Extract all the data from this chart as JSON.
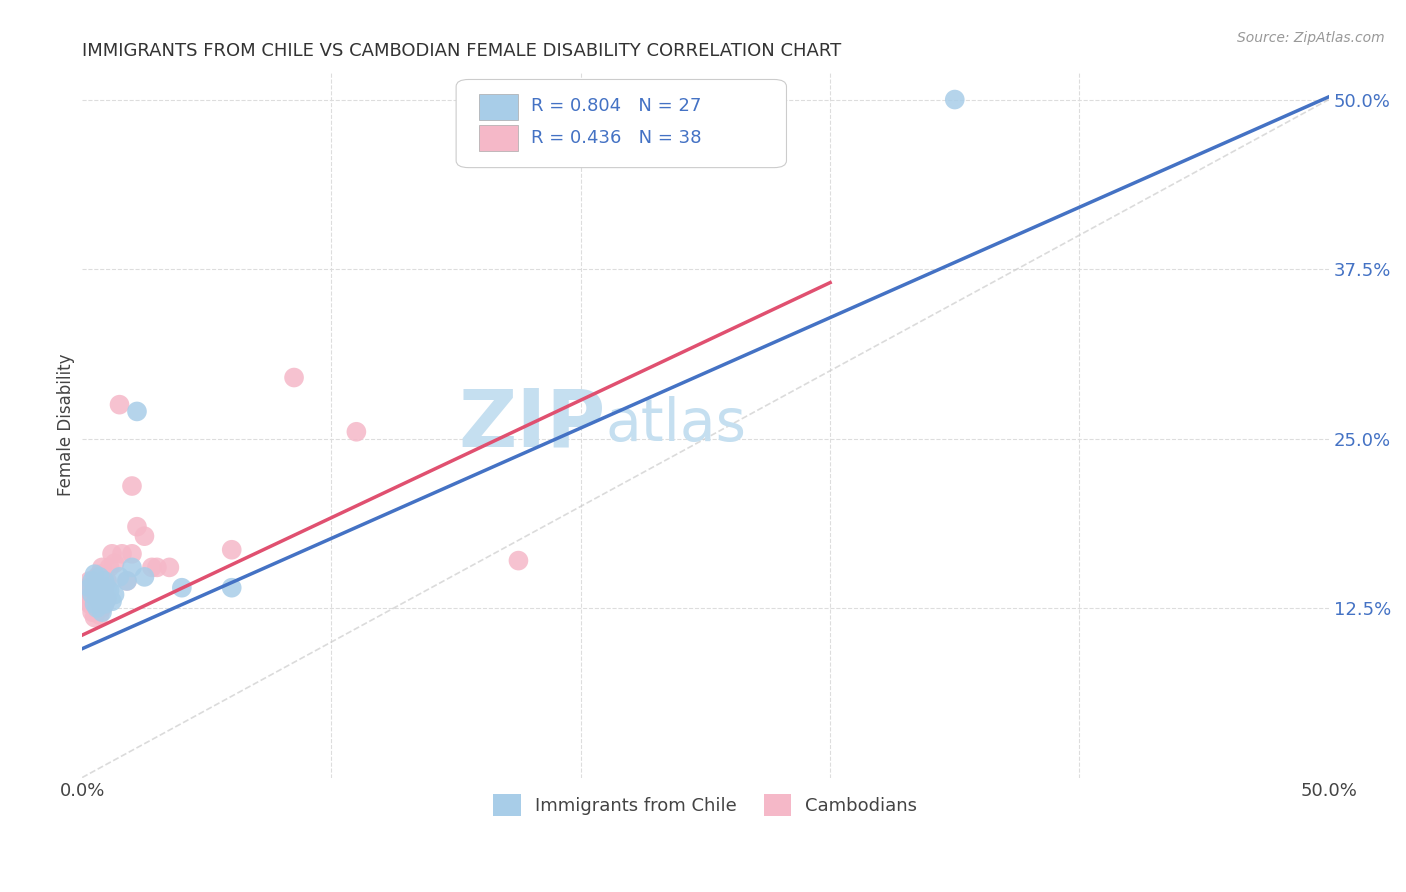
{
  "title": "IMMIGRANTS FROM CHILE VS CAMBODIAN FEMALE DISABILITY CORRELATION CHART",
  "source": "Source: ZipAtlas.com",
  "ylabel": "Female Disability",
  "xlim": [
    0.0,
    0.5
  ],
  "ylim": [
    0.0,
    0.52
  ],
  "xtick_positions": [
    0.0,
    0.1,
    0.2,
    0.3,
    0.4,
    0.5
  ],
  "xticklabels": [
    "0.0%",
    "",
    "",
    "",
    "",
    "50.0%"
  ],
  "ytick_positions": [
    0.125,
    0.25,
    0.375,
    0.5
  ],
  "ytick_labels": [
    "12.5%",
    "25.0%",
    "37.5%",
    "50.0%"
  ],
  "background_color": "#ffffff",
  "grid_color": "#dddddd",
  "blue_color": "#a8cde8",
  "pink_color": "#f5b8c8",
  "blue_line_color": "#4472c4",
  "pink_line_color": "#e05070",
  "diag_line_color": "#cccccc",
  "legend_label1": "Immigrants from Chile",
  "legend_label2": "Cambodians",
  "blue_scatter_x": [
    0.003,
    0.004,
    0.004,
    0.005,
    0.005,
    0.005,
    0.006,
    0.006,
    0.007,
    0.007,
    0.008,
    0.008,
    0.009,
    0.009,
    0.01,
    0.01,
    0.011,
    0.012,
    0.013,
    0.015,
    0.018,
    0.02,
    0.022,
    0.025,
    0.04,
    0.06,
    0.35
  ],
  "blue_scatter_y": [
    0.14,
    0.135,
    0.145,
    0.128,
    0.138,
    0.15,
    0.125,
    0.142,
    0.13,
    0.148,
    0.122,
    0.135,
    0.128,
    0.145,
    0.132,
    0.14,
    0.138,
    0.13,
    0.135,
    0.148,
    0.145,
    0.155,
    0.27,
    0.148,
    0.14,
    0.14,
    0.5
  ],
  "pink_scatter_x": [
    0.002,
    0.002,
    0.003,
    0.003,
    0.003,
    0.004,
    0.004,
    0.005,
    0.005,
    0.005,
    0.006,
    0.006,
    0.007,
    0.007,
    0.007,
    0.008,
    0.008,
    0.009,
    0.009,
    0.01,
    0.01,
    0.011,
    0.012,
    0.013,
    0.015,
    0.016,
    0.018,
    0.02,
    0.02,
    0.022,
    0.025,
    0.028,
    0.03,
    0.035,
    0.06,
    0.085,
    0.11,
    0.175
  ],
  "pink_scatter_y": [
    0.13,
    0.14,
    0.128,
    0.138,
    0.145,
    0.122,
    0.132,
    0.118,
    0.128,
    0.138,
    0.135,
    0.148,
    0.12,
    0.13,
    0.15,
    0.125,
    0.155,
    0.128,
    0.14,
    0.132,
    0.145,
    0.155,
    0.165,
    0.158,
    0.275,
    0.165,
    0.145,
    0.165,
    0.215,
    0.185,
    0.178,
    0.155,
    0.155,
    0.155,
    0.168,
    0.295,
    0.255,
    0.16
  ],
  "blue_line_x": [
    0.0,
    0.5
  ],
  "blue_line_y": [
    0.095,
    0.502
  ],
  "pink_line_x": [
    0.0,
    0.3
  ],
  "pink_line_y": [
    0.105,
    0.365
  ],
  "watermark_zip": "ZIP",
  "watermark_atlas": "atlas",
  "watermark_color": "#c5dff0"
}
